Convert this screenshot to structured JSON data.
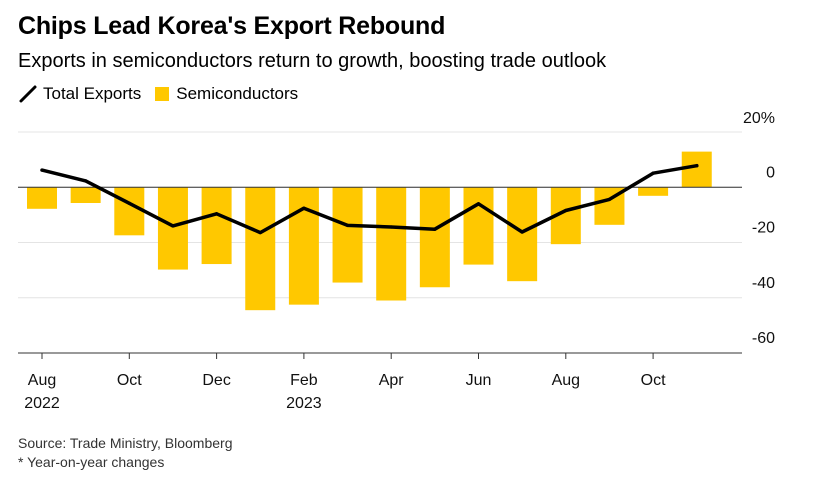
{
  "title": "Chips Lead Korea's Export Rebound",
  "subtitle": "Exports in semiconductors return to growth, boosting trade outlook",
  "legend": {
    "line_label": "Total Exports",
    "bar_label": "Semiconductors"
  },
  "footer": {
    "source": "Source: Trade Ministry, Bloomberg",
    "note": "* Year-on-year changes"
  },
  "colors": {
    "bar": "#FFC800",
    "line": "#000000",
    "grid": "#E4E4E4",
    "axis": "#333333"
  },
  "chart_data": {
    "type": "bar",
    "title": "Chips Lead Korea's Export Rebound",
    "xlabel": "",
    "ylabel": "",
    "ylim": [
      -60,
      20
    ],
    "y_ticks": [
      {
        "value": 20,
        "label": "20%"
      },
      {
        "value": 0,
        "label": "0"
      },
      {
        "value": -20,
        "label": "-20"
      },
      {
        "value": -40,
        "label": "-40"
      },
      {
        "value": -60,
        "label": "-60"
      }
    ],
    "categories": [
      "Aug 2022",
      "Sep 2022",
      "Oct 2022",
      "Nov 2022",
      "Dec 2022",
      "Jan 2023",
      "Feb 2023",
      "Mar 2023",
      "Apr 2023",
      "May 2023",
      "Jun 2023",
      "Jul 2023",
      "Aug 2023",
      "Sep 2023",
      "Oct 2023",
      "Nov 2023"
    ],
    "x_ticks": [
      {
        "index": 0,
        "label": "Aug",
        "year": "2022"
      },
      {
        "index": 2,
        "label": "Oct",
        "year": ""
      },
      {
        "index": 4,
        "label": "Dec",
        "year": ""
      },
      {
        "index": 6,
        "label": "Feb",
        "year": "2023"
      },
      {
        "index": 8,
        "label": "Apr",
        "year": ""
      },
      {
        "index": 10,
        "label": "Jun",
        "year": ""
      },
      {
        "index": 12,
        "label": "Aug",
        "year": ""
      },
      {
        "index": 14,
        "label": "Oct",
        "year": ""
      }
    ],
    "series": [
      {
        "name": "Semiconductors",
        "type": "bar",
        "values": [
          -7.8,
          -5.7,
          -17.4,
          -29.8,
          -27.8,
          -44.5,
          -42.5,
          -34.5,
          -41.0,
          -36.2,
          -28.0,
          -34.0,
          -20.6,
          -13.6,
          -3.1,
          12.9
        ]
      },
      {
        "name": "Total Exports",
        "type": "line",
        "values": [
          6.2,
          2.3,
          -5.8,
          -14.0,
          -9.6,
          -16.4,
          -7.6,
          -13.8,
          -14.4,
          -15.2,
          -6.0,
          -16.2,
          -8.4,
          -4.4,
          5.1,
          7.8
        ]
      }
    ],
    "legend_position": "top-left",
    "y_axis_position": "right"
  }
}
